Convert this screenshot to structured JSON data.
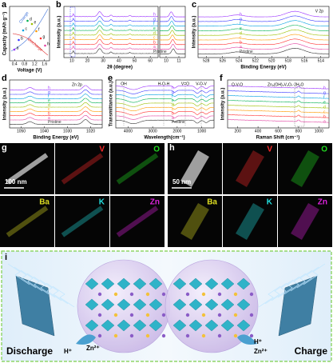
{
  "panels": {
    "a": {
      "label": "a",
      "y_label": "Capacity (mAh g⁻¹)",
      "x_label": "Voltage (V)",
      "x_ticks": [
        "0.4",
        "0.8",
        "1.2",
        "1.6"
      ],
      "annotations": [
        "Charge",
        "Discharge"
      ],
      "points": [
        "a",
        "b",
        "c",
        "d",
        "e",
        "f",
        "g",
        "h"
      ]
    },
    "b": {
      "label": "b",
      "y_label": "Intensity (a.u.)",
      "x_label": "2θ (degree)",
      "x_ticks": [
        "10",
        "20",
        "30",
        "40",
        "50",
        "60"
      ],
      "zoom_ticks": [
        "10",
        "11"
      ],
      "curves": [
        "h",
        "g",
        "f",
        "e",
        "d",
        "c",
        "b",
        "a",
        "Pristine"
      ]
    },
    "c": {
      "label": "c",
      "title": "V 2p",
      "y_label": "Intensity (a.u.)",
      "x_label": "Binding Energy (eV)",
      "x_ticks": [
        "528",
        "526",
        "524",
        "522",
        "520",
        "518",
        "516",
        "514"
      ],
      "curves": [
        "h",
        "g",
        "f",
        "e",
        "d",
        "c",
        "b",
        "a",
        "Pristine"
      ]
    },
    "d": {
      "label": "d",
      "title": "Zn 2p",
      "y_label": "Intensity (a.u.)",
      "x_label": "Binding Energy (eV)",
      "x_ticks": [
        "1050",
        "1040",
        "1030",
        "1020"
      ],
      "curves": [
        "h",
        "g",
        "f",
        "e",
        "d",
        "c",
        "b",
        "a",
        "Pristine"
      ]
    },
    "e": {
      "label": "e",
      "y_label": "Transmittance (a.u.)",
      "x_label": "Wavelength(cm⁻¹)",
      "x_ticks": [
        "4000",
        "3000",
        "2000",
        "1000"
      ],
      "annotations": [
        "OH",
        "H-O-H",
        "V=O",
        "V-O-V"
      ],
      "curves": [
        "h",
        "g",
        "f",
        "e",
        "d",
        "c",
        "b",
        "a",
        "Pristine"
      ]
    },
    "f": {
      "label": "f",
      "y_label": "Intensity (a.u.)",
      "x_label": "Raman Shift (cm⁻¹)",
      "x_ticks": [
        "200",
        "400",
        "600",
        "800",
        "1000"
      ],
      "annotations": [
        "O-V-O",
        "Zn₃(OH)₂V₂O₇·2H₂O"
      ],
      "curves": [
        "h",
        "g",
        "f",
        "e",
        "d",
        "c",
        "b",
        "a"
      ]
    },
    "g": {
      "label": "g",
      "scale": "100 nm",
      "maps": [
        "V",
        "O",
        "Ba",
        "K",
        "Zn"
      ]
    },
    "h": {
      "label": "h",
      "scale": "50 nm",
      "maps": [
        "V",
        "O",
        "Ba",
        "K",
        "Zn"
      ]
    },
    "i": {
      "label": "i",
      "left": "Discharge",
      "right": "Charge",
      "ions_left": [
        "H⁺",
        "Zn²⁺"
      ],
      "ions_right": [
        "H⁺",
        "Zn²⁺"
      ]
    }
  }
}
